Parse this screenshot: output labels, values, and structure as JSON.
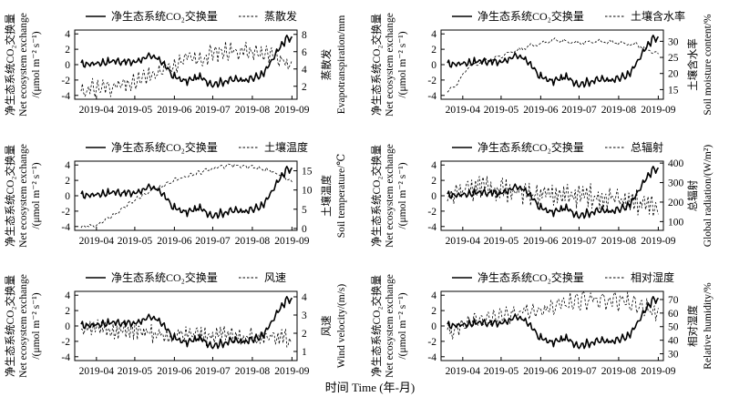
{
  "figure": {
    "x_title": "时间 Time (年-月)"
  },
  "chart_data": [
    {
      "type": "line",
      "panel": "a",
      "title": "",
      "legend": {
        "primary": "净生态系统CO₂交换量",
        "secondary": "蒸散发",
        "placement": "top"
      },
      "ylabel_left": [
        "净生态系统CO₂交换量",
        "Net ecosystem exchange",
        "/(μmol m⁻² s⁻¹)"
      ],
      "ylabel_right": [
        "蒸散发",
        "Evapotranspiration/mm"
      ],
      "x_ticks": [
        "2019-04",
        "2019-05",
        "2019-06",
        "2019-07",
        "2019-08",
        "2019-09"
      ],
      "xlim": [
        "2019-03-15",
        "2019-09-05"
      ],
      "ylim_left": [
        -4.5,
        4.5
      ],
      "yticks_left": [
        -4,
        -2,
        0,
        2,
        4
      ],
      "ylim_right": [
        0.5,
        8.5
      ],
      "yticks_right": [
        2,
        4,
        6,
        8
      ],
      "series": [
        {
          "name": "净生态系统CO₂交换量",
          "style": "solid",
          "axis": "left",
          "x": [
            "2019-03-20",
            "2019-04-01",
            "2019-04-15",
            "2019-04-30",
            "2019-05-10",
            "2019-05-20",
            "2019-05-31",
            "2019-06-10",
            "2019-06-20",
            "2019-07-01",
            "2019-07-15",
            "2019-08-01",
            "2019-08-10",
            "2019-08-20",
            "2019-08-28",
            "2019-09-01"
          ],
          "values": [
            0.0,
            0.2,
            0.5,
            0.3,
            1.0,
            0.8,
            -1.5,
            -2.2,
            -1.6,
            -2.5,
            -2.0,
            -1.8,
            -1.2,
            1.5,
            3.5,
            3.2
          ]
        },
        {
          "name": "蒸散发",
          "style": "dashed",
          "axis": "right",
          "x": [
            "2019-03-20",
            "2019-04-01",
            "2019-04-15",
            "2019-04-30",
            "2019-05-10",
            "2019-05-20",
            "2019-05-31",
            "2019-06-10",
            "2019-06-20",
            "2019-07-01",
            "2019-07-15",
            "2019-08-01",
            "2019-08-10",
            "2019-08-20",
            "2019-08-28",
            "2019-09-01"
          ],
          "values": [
            1.5,
            1.8,
            2.0,
            2.3,
            3.0,
            3.6,
            4.6,
            5.2,
            5.0,
            5.8,
            6.2,
            6.0,
            5.8,
            5.2,
            4.6,
            4.2
          ]
        }
      ]
    },
    {
      "type": "line",
      "panel": "b",
      "title": "",
      "legend": {
        "primary": "净生态系统CO₂交换量",
        "secondary": "土壤含水率",
        "placement": "top"
      },
      "ylabel_left": [
        "净生态系统CO₂交换量",
        "Net ecosystem exchange",
        "/(μmol m⁻² s⁻¹)"
      ],
      "ylabel_right": [
        "土壤含水率",
        "Soil moisture content/%"
      ],
      "x_ticks": [
        "2019-04",
        "2019-05",
        "2019-06",
        "2019-07",
        "2019-08",
        "2019-09"
      ],
      "xlim": [
        "2019-03-15",
        "2019-09-05"
      ],
      "ylim_left": [
        -4.5,
        4.5
      ],
      "yticks_left": [
        -4,
        -2,
        0,
        2,
        4
      ],
      "ylim_right": [
        12,
        33.5
      ],
      "yticks_right": [
        15,
        20,
        25,
        30
      ],
      "series": [
        {
          "name": "净生态系统CO₂交换量",
          "style": "solid",
          "axis": "left",
          "x": [
            "2019-03-20",
            "2019-04-01",
            "2019-04-15",
            "2019-04-30",
            "2019-05-10",
            "2019-05-20",
            "2019-05-31",
            "2019-06-10",
            "2019-06-20",
            "2019-07-01",
            "2019-07-15",
            "2019-08-01",
            "2019-08-10",
            "2019-08-20",
            "2019-08-28",
            "2019-09-01"
          ],
          "values": [
            0.0,
            0.2,
            0.5,
            0.3,
            1.0,
            0.8,
            -1.5,
            -2.2,
            -1.6,
            -2.5,
            -2.0,
            -1.8,
            -1.2,
            1.5,
            3.5,
            3.2
          ]
        },
        {
          "name": "土壤含水率",
          "style": "dashed",
          "axis": "right",
          "x": [
            "2019-03-20",
            "2019-03-28",
            "2019-04-05",
            "2019-04-20",
            "2019-05-05",
            "2019-05-20",
            "2019-06-01",
            "2019-06-15",
            "2019-07-01",
            "2019-07-15",
            "2019-08-01",
            "2019-08-15",
            "2019-08-25",
            "2019-09-01"
          ],
          "values": [
            14,
            17,
            22,
            24,
            26,
            28,
            29.5,
            30.5,
            29.5,
            30,
            29.5,
            29,
            27,
            26
          ]
        }
      ]
    },
    {
      "type": "line",
      "panel": "c",
      "title": "",
      "legend": {
        "primary": "净生态系统CO₂交换量",
        "secondary": "土壤温度",
        "placement": "top"
      },
      "ylabel_left": [
        "净生态系统CO₂交换量",
        "Net ecosystem exchange",
        "/(μmol m⁻² s⁻¹)"
      ],
      "ylabel_right": [
        "土壤温度",
        "Soil temperature/℃"
      ],
      "x_ticks": [
        "2019-04",
        "2019-05",
        "2019-06",
        "2019-07",
        "2019-08",
        "2019-09"
      ],
      "xlim": [
        "2019-03-15",
        "2019-09-05"
      ],
      "ylim_left": [
        -4.5,
        4.5
      ],
      "yticks_left": [
        -4,
        -2,
        0,
        2,
        4
      ],
      "ylim_right": [
        -0.5,
        17.5
      ],
      "yticks_right": [
        0,
        5,
        10,
        15
      ],
      "series": [
        {
          "name": "净生态系统CO₂交换量",
          "style": "solid",
          "axis": "left",
          "x": [
            "2019-03-20",
            "2019-04-01",
            "2019-04-15",
            "2019-04-30",
            "2019-05-10",
            "2019-05-20",
            "2019-05-31",
            "2019-06-10",
            "2019-06-20",
            "2019-07-01",
            "2019-07-15",
            "2019-08-01",
            "2019-08-10",
            "2019-08-20",
            "2019-08-28",
            "2019-09-01"
          ],
          "values": [
            0.0,
            0.2,
            0.5,
            0.3,
            1.0,
            0.8,
            -1.5,
            -2.2,
            -1.6,
            -2.5,
            -2.0,
            -1.8,
            -1.2,
            1.5,
            3.5,
            3.2
          ]
        },
        {
          "name": "土壤温度",
          "style": "dashed",
          "axis": "right",
          "x": [
            "2019-03-20",
            "2019-04-01",
            "2019-04-15",
            "2019-05-01",
            "2019-05-15",
            "2019-06-01",
            "2019-06-15",
            "2019-07-01",
            "2019-07-15",
            "2019-08-01",
            "2019-08-15",
            "2019-08-25",
            "2019-09-01"
          ],
          "values": [
            0.5,
            0.8,
            3.5,
            7.5,
            10,
            12.5,
            14,
            15.5,
            16.5,
            16,
            15,
            13.5,
            12
          ]
        }
      ]
    },
    {
      "type": "line",
      "panel": "d",
      "title": "",
      "legend": {
        "primary": "净生态系统CO₂交换量",
        "secondary": "总辐射",
        "placement": "top"
      },
      "ylabel_left": [
        "净生态系统CO₂交换量",
        "Net ecosystem exchange",
        "/(μmol m⁻² s⁻¹)"
      ],
      "ylabel_right": [
        "总辐射",
        "Global radiation/(W/m²)"
      ],
      "x_ticks": [
        "2019-04",
        "2019-05",
        "2019-06",
        "2019-07",
        "2019-08",
        "2019-09"
      ],
      "xlim": [
        "2019-03-15",
        "2019-09-05"
      ],
      "ylim_left": [
        -4.5,
        4.5
      ],
      "yticks_left": [
        -4,
        -2,
        0,
        2,
        4
      ],
      "ylim_right": [
        55,
        410
      ],
      "yticks_right": [
        100,
        200,
        300,
        400
      ],
      "series": [
        {
          "name": "净生态系统CO₂交换量",
          "style": "solid",
          "axis": "left",
          "x": [
            "2019-03-20",
            "2019-04-01",
            "2019-04-15",
            "2019-04-30",
            "2019-05-10",
            "2019-05-20",
            "2019-05-31",
            "2019-06-10",
            "2019-06-20",
            "2019-07-01",
            "2019-07-15",
            "2019-08-01",
            "2019-08-10",
            "2019-08-20",
            "2019-08-28",
            "2019-09-01"
          ],
          "values": [
            0.0,
            0.2,
            0.5,
            0.3,
            1.0,
            0.8,
            -1.5,
            -2.2,
            -1.6,
            -2.5,
            -2.0,
            -1.8,
            -1.2,
            1.5,
            3.5,
            3.2
          ]
        },
        {
          "name": "总辐射",
          "style": "dashed",
          "axis": "right",
          "x": [
            "2019-03-20",
            "2019-04-01",
            "2019-04-15",
            "2019-05-01",
            "2019-05-15",
            "2019-06-01",
            "2019-06-15",
            "2019-07-01",
            "2019-07-15",
            "2019-08-01",
            "2019-08-15",
            "2019-08-25",
            "2019-09-01"
          ],
          "values": [
            220,
            260,
            280,
            270,
            250,
            230,
            240,
            220,
            230,
            220,
            200,
            180,
            170
          ]
        }
      ]
    },
    {
      "type": "line",
      "panel": "e",
      "title": "",
      "legend": {
        "primary": "净生态系统CO₂交换量",
        "secondary": "风速",
        "placement": "top"
      },
      "ylabel_left": [
        "净生态系统CO₂交换量",
        "Net ecosystem exchange",
        "/(μmol m⁻² s⁻¹)"
      ],
      "ylabel_right": [
        "风速",
        "Wind velocity/(m/s)"
      ],
      "x_ticks": [
        "2019-04",
        "2019-05",
        "2019-06",
        "2019-07",
        "2019-08",
        "2019-09"
      ],
      "xlim": [
        "2019-03-15",
        "2019-09-05"
      ],
      "ylim_left": [
        -4.5,
        4.5
      ],
      "yticks_left": [
        -4,
        -2,
        0,
        2,
        4
      ],
      "ylim_right": [
        0.5,
        4.3
      ],
      "yticks_right": [
        1,
        2,
        3,
        4
      ],
      "series": [
        {
          "name": "净生态系统CO₂交换量",
          "style": "solid",
          "axis": "left",
          "x": [
            "2019-03-20",
            "2019-04-01",
            "2019-04-15",
            "2019-04-30",
            "2019-05-10",
            "2019-05-20",
            "2019-05-31",
            "2019-06-10",
            "2019-06-20",
            "2019-07-01",
            "2019-07-15",
            "2019-08-01",
            "2019-08-10",
            "2019-08-20",
            "2019-08-28",
            "2019-09-01"
          ],
          "values": [
            0.0,
            0.2,
            0.5,
            0.3,
            1.0,
            0.8,
            -1.5,
            -2.2,
            -1.6,
            -2.5,
            -2.0,
            -1.8,
            -1.2,
            1.5,
            3.5,
            3.2
          ]
        },
        {
          "name": "风速",
          "style": "dashed",
          "axis": "right",
          "x": [
            "2019-03-20",
            "2019-04-01",
            "2019-04-15",
            "2019-05-01",
            "2019-05-15",
            "2019-06-01",
            "2019-06-15",
            "2019-07-01",
            "2019-07-15",
            "2019-08-01",
            "2019-08-15",
            "2019-08-25",
            "2019-09-01"
          ],
          "values": [
            2.2,
            2.3,
            2.1,
            2.2,
            2.0,
            1.9,
            2.0,
            1.8,
            1.9,
            1.8,
            1.9,
            1.7,
            1.6
          ]
        }
      ]
    },
    {
      "type": "line",
      "panel": "f",
      "title": "",
      "legend": {
        "primary": "净生态系统CO₂交换量",
        "secondary": "相对湿度",
        "placement": "top"
      },
      "ylabel_left": [
        "净生态系统CO₂交换量",
        "Net ecosystem exchange",
        "/(μmol m⁻² s⁻¹)"
      ],
      "ylabel_right": [
        "相对湿度",
        "Relative humidity/%"
      ],
      "x_ticks": [
        "2019-04",
        "2019-05",
        "2019-06",
        "2019-07",
        "2019-08",
        "2019-09"
      ],
      "xlim": [
        "2019-03-15",
        "2019-09-05"
      ],
      "ylim_left": [
        -4.5,
        4.5
      ],
      "yticks_left": [
        -4,
        -2,
        0,
        2,
        4
      ],
      "ylim_right": [
        25,
        76
      ],
      "yticks_right": [
        30,
        40,
        50,
        60,
        70
      ],
      "series": [
        {
          "name": "净生态系统CO₂交换量",
          "style": "solid",
          "axis": "left",
          "x": [
            "2019-03-20",
            "2019-04-01",
            "2019-04-15",
            "2019-04-30",
            "2019-05-10",
            "2019-05-20",
            "2019-05-31",
            "2019-06-10",
            "2019-06-20",
            "2019-07-01",
            "2019-07-15",
            "2019-08-01",
            "2019-08-10",
            "2019-08-20",
            "2019-08-28",
            "2019-09-01"
          ],
          "values": [
            0.0,
            0.2,
            0.5,
            0.3,
            1.0,
            0.8,
            -1.5,
            -2.2,
            -1.6,
            -2.5,
            -2.0,
            -1.8,
            -1.2,
            1.5,
            3.5,
            3.2
          ]
        },
        {
          "name": "相对湿度",
          "style": "dashed",
          "axis": "right",
          "x": [
            "2019-03-20",
            "2019-04-01",
            "2019-04-15",
            "2019-05-01",
            "2019-05-15",
            "2019-06-01",
            "2019-06-15",
            "2019-07-01",
            "2019-07-15",
            "2019-08-01",
            "2019-08-15",
            "2019-08-25",
            "2019-09-01"
          ],
          "values": [
            45,
            50,
            55,
            57,
            60,
            62,
            66,
            69,
            70,
            69,
            66,
            62,
            60
          ]
        }
      ]
    }
  ]
}
